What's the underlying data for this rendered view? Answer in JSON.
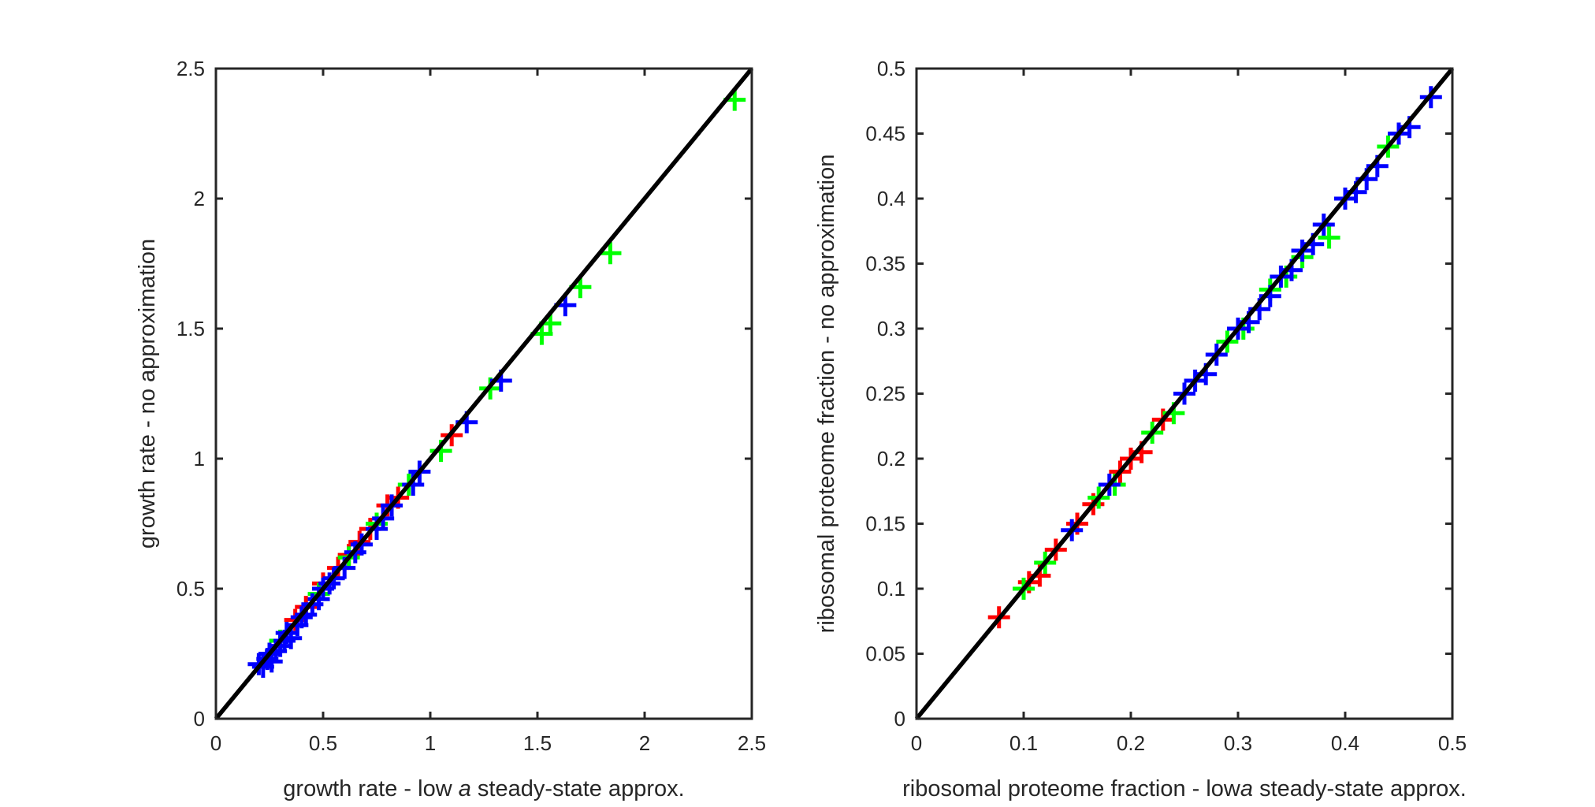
{
  "chart_data": [
    {
      "type": "scatter",
      "marker": "+",
      "xlabel": "growth rate - low a steady-state approx.",
      "xlabel_parts": [
        "growth rate - low ",
        "a",
        " steady-state approx."
      ],
      "ylabel": "growth rate - no approximation",
      "xlim": [
        0,
        2.5
      ],
      "ylim": [
        0,
        2.5
      ],
      "xticks": [
        "0",
        "0.5",
        "1",
        "1.5",
        "2",
        "2.5"
      ],
      "yticks": [
        "0",
        "0.5",
        "1",
        "1.5",
        "2",
        "2.5"
      ],
      "grid": false,
      "reference_line": {
        "type": "y=x",
        "color": "#000000"
      },
      "series": [
        {
          "color": "#ff0000",
          "points": [
            [
              0.37,
              0.38
            ],
            [
              0.42,
              0.43
            ],
            [
              0.5,
              0.52
            ],
            [
              0.57,
              0.58
            ],
            [
              0.62,
              0.63
            ],
            [
              0.67,
              0.68
            ],
            [
              0.72,
              0.73
            ],
            [
              0.8,
              0.82
            ],
            [
              0.85,
              0.85
            ],
            [
              1.1,
              1.09
            ]
          ]
        },
        {
          "color": "#00ff00",
          "points": [
            [
              0.3,
              0.3
            ],
            [
              0.48,
              0.48
            ],
            [
              0.62,
              0.62
            ],
            [
              0.75,
              0.75
            ],
            [
              0.9,
              0.9
            ],
            [
              1.05,
              1.03
            ],
            [
              1.28,
              1.27
            ],
            [
              1.52,
              1.48
            ],
            [
              1.56,
              1.52
            ],
            [
              1.7,
              1.66
            ],
            [
              1.84,
              1.79
            ],
            [
              2.42,
              2.38
            ]
          ]
        },
        {
          "color": "#0000ff",
          "points": [
            [
              0.2,
              0.21
            ],
            [
              0.22,
              0.2
            ],
            [
              0.24,
              0.23
            ],
            [
              0.25,
              0.25
            ],
            [
              0.26,
              0.22
            ],
            [
              0.28,
              0.26
            ],
            [
              0.3,
              0.28
            ],
            [
              0.32,
              0.3
            ],
            [
              0.33,
              0.33
            ],
            [
              0.35,
              0.31
            ],
            [
              0.38,
              0.36
            ],
            [
              0.4,
              0.39
            ],
            [
              0.42,
              0.4
            ],
            [
              0.45,
              0.44
            ],
            [
              0.48,
              0.46
            ],
            [
              0.5,
              0.5
            ],
            [
              0.53,
              0.52
            ],
            [
              0.55,
              0.54
            ],
            [
              0.6,
              0.58
            ],
            [
              0.65,
              0.64
            ],
            [
              0.68,
              0.67
            ],
            [
              0.75,
              0.73
            ],
            [
              0.78,
              0.77
            ],
            [
              0.82,
              0.82
            ],
            [
              0.92,
              0.9
            ],
            [
              0.95,
              0.95
            ],
            [
              1.17,
              1.14
            ],
            [
              1.33,
              1.3
            ],
            [
              1.63,
              1.59
            ]
          ]
        }
      ]
    },
    {
      "type": "scatter",
      "marker": "+",
      "xlabel": "ribosomal proteome fraction - low a steady-state approx.",
      "xlabel_parts": [
        "ribosomal proteome fraction - low",
        "a",
        " steady-state approx."
      ],
      "ylabel": "ribosomal proteome fraction - no approximation",
      "xlim": [
        0,
        0.5
      ],
      "ylim": [
        0,
        0.5
      ],
      "xticks": [
        "0",
        "0.1",
        "0.2",
        "0.3",
        "0.4",
        "0.5"
      ],
      "yticks": [
        "0",
        "0.05",
        "0.1",
        "0.15",
        "0.2",
        "0.25",
        "0.3",
        "0.35",
        "0.4",
        "0.45",
        "0.5"
      ],
      "grid": false,
      "reference_line": {
        "type": "y=x",
        "color": "#000000"
      },
      "series": [
        {
          "color": "#ff0000",
          "points": [
            [
              0.077,
              0.078
            ],
            [
              0.105,
              0.105
            ],
            [
              0.115,
              0.11
            ],
            [
              0.13,
              0.13
            ],
            [
              0.15,
              0.15
            ],
            [
              0.165,
              0.165
            ],
            [
              0.19,
              0.19
            ],
            [
              0.2,
              0.2
            ],
            [
              0.21,
              0.205
            ],
            [
              0.23,
              0.23
            ]
          ]
        },
        {
          "color": "#00ff00",
          "points": [
            [
              0.1,
              0.1
            ],
            [
              0.12,
              0.12
            ],
            [
              0.17,
              0.17
            ],
            [
              0.185,
              0.18
            ],
            [
              0.22,
              0.22
            ],
            [
              0.24,
              0.235
            ],
            [
              0.29,
              0.29
            ],
            [
              0.305,
              0.3
            ],
            [
              0.33,
              0.33
            ],
            [
              0.345,
              0.34
            ],
            [
              0.36,
              0.355
            ],
            [
              0.385,
              0.37
            ],
            [
              0.44,
              0.44
            ]
          ]
        },
        {
          "color": "#0000ff",
          "points": [
            [
              0.145,
              0.145
            ],
            [
              0.18,
              0.18
            ],
            [
              0.25,
              0.25
            ],
            [
              0.26,
              0.26
            ],
            [
              0.27,
              0.265
            ],
            [
              0.28,
              0.28
            ],
            [
              0.3,
              0.3
            ],
            [
              0.31,
              0.305
            ],
            [
              0.32,
              0.315
            ],
            [
              0.33,
              0.325
            ],
            [
              0.34,
              0.34
            ],
            [
              0.35,
              0.345
            ],
            [
              0.36,
              0.36
            ],
            [
              0.37,
              0.365
            ],
            [
              0.38,
              0.38
            ],
            [
              0.4,
              0.4
            ],
            [
              0.41,
              0.405
            ],
            [
              0.42,
              0.415
            ],
            [
              0.43,
              0.425
            ],
            [
              0.45,
              0.45
            ],
            [
              0.46,
              0.455
            ],
            [
              0.48,
              0.478
            ]
          ]
        }
      ]
    }
  ]
}
